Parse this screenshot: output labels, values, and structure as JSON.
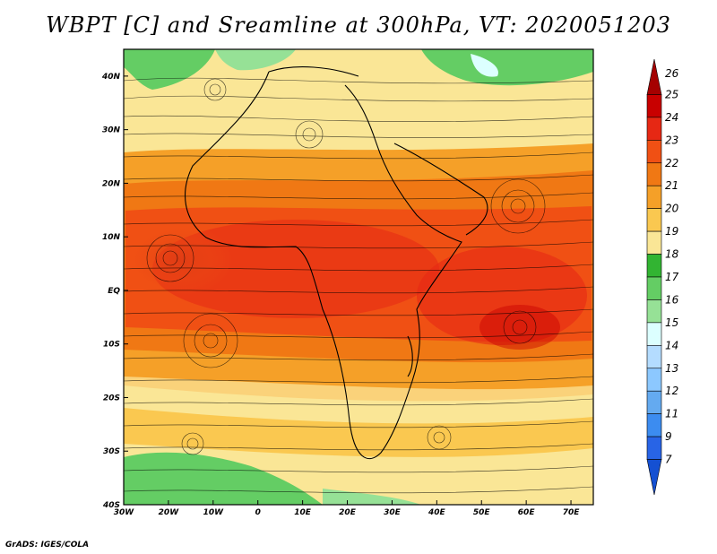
{
  "title": "WBPT [C] and Sreamline at 300hPa, VT: 2020051203",
  "credit": "GrADS: IGES/COLA",
  "map": {
    "lon_ticks": [
      "30W",
      "20W",
      "10W",
      "0",
      "10E",
      "20E",
      "30E",
      "40E",
      "50E",
      "60E",
      "70E"
    ],
    "lat_ticks": [
      "40N",
      "30N",
      "20N",
      "10N",
      "EQ",
      "10S",
      "20S",
      "30S",
      "40S"
    ],
    "lon_range": [
      -30,
      75
    ],
    "lat_range": [
      -40,
      45
    ]
  },
  "colorbar": {
    "labels": [
      "26",
      "25",
      "24",
      "23",
      "22",
      "21",
      "20",
      "19",
      "18",
      "17",
      "16",
      "15",
      "14",
      "13",
      "12",
      "11",
      "9",
      "7"
    ],
    "colors": [
      "#a50000",
      "#c80000",
      "#e62814",
      "#f05014",
      "#f07814",
      "#f5a028",
      "#fac850",
      "#fae696",
      "#32b432",
      "#64cd64",
      "#96e196",
      "#dcffff",
      "#b4dcff",
      "#8cc8ff",
      "#64aaf0",
      "#3c8cf0",
      "#2864e6",
      "#1450d2"
    ]
  }
}
